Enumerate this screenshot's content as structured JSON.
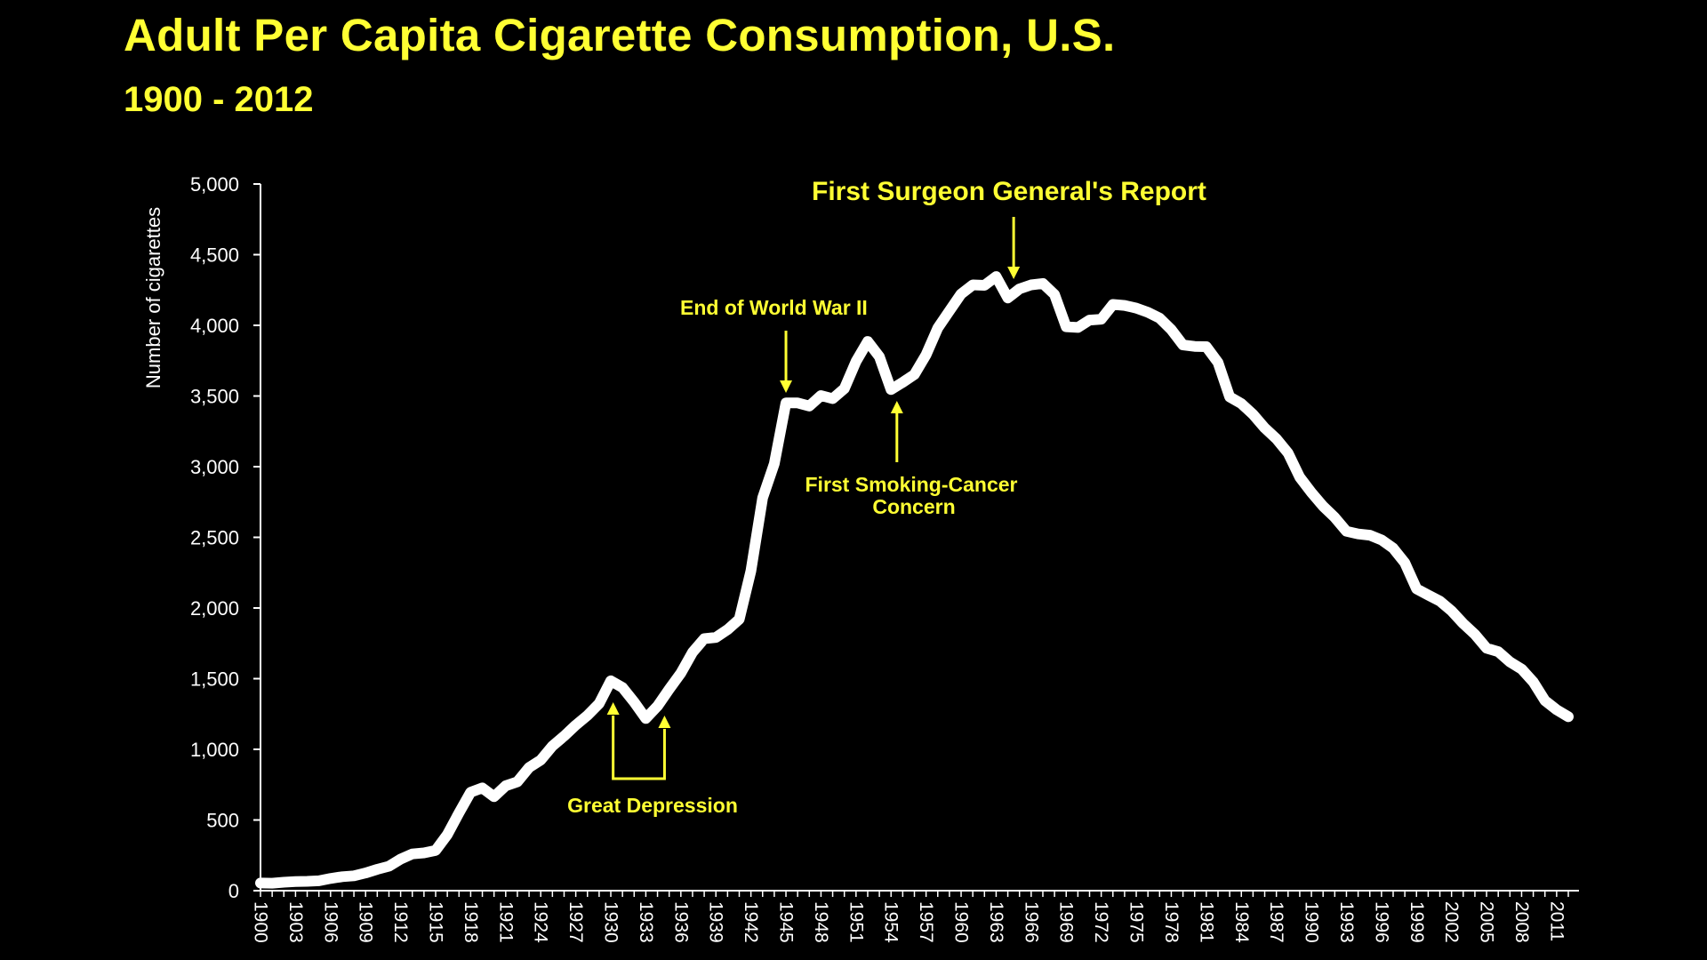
{
  "title": "Adult Per Capita Cigarette Consumption, U.S.",
  "subtitle": "1900 - 2012",
  "colors": {
    "background": "#000000",
    "accent": "#ffff33",
    "line": "#ffffff"
  },
  "chart_data": {
    "type": "line",
    "title": "Adult Per Capita Cigarette Consumption, U.S.",
    "subtitle": "1900 - 2012",
    "xlabel": "",
    "ylabel": "Number of cigarettes",
    "ylim": [
      0,
      5000
    ],
    "xlim": [
      1900,
      2012
    ],
    "grid": false,
    "y_ticks": [
      0,
      500,
      1000,
      1500,
      2000,
      2500,
      3000,
      3500,
      4000,
      4500,
      5000
    ],
    "y_tick_labels": [
      "0",
      "500",
      "1,000",
      "1,500",
      "2,000",
      "2,500",
      "3,000",
      "3,500",
      "4,000",
      "4,500",
      "5,000"
    ],
    "x_tick_labels": [
      "1900",
      "1903",
      "1906",
      "1909",
      "1912",
      "1915",
      "1918",
      "1921",
      "1924",
      "1927",
      "1930",
      "1933",
      "1936",
      "1939",
      "1942",
      "1945",
      "1948",
      "1951",
      "1954",
      "1957",
      "1960",
      "1963",
      "1966",
      "1969",
      "1972",
      "1975",
      "1978",
      "1981",
      "1984",
      "1987",
      "1990",
      "1993",
      "1996",
      "1999",
      "2002",
      "2005",
      "2008",
      "2011"
    ],
    "x": [
      1900,
      1901,
      1902,
      1903,
      1904,
      1905,
      1906,
      1907,
      1908,
      1909,
      1910,
      1911,
      1912,
      1913,
      1914,
      1915,
      1916,
      1917,
      1918,
      1919,
      1920,
      1921,
      1922,
      1923,
      1924,
      1925,
      1926,
      1927,
      1928,
      1929,
      1930,
      1931,
      1932,
      1933,
      1934,
      1935,
      1936,
      1937,
      1938,
      1939,
      1940,
      1941,
      1942,
      1943,
      1944,
      1945,
      1946,
      1947,
      1948,
      1949,
      1950,
      1951,
      1952,
      1953,
      1954,
      1955,
      1956,
      1957,
      1958,
      1959,
      1960,
      1961,
      1962,
      1963,
      1964,
      1965,
      1966,
      1967,
      1968,
      1969,
      1970,
      1971,
      1972,
      1973,
      1974,
      1975,
      1976,
      1977,
      1978,
      1979,
      1980,
      1981,
      1982,
      1983,
      1984,
      1985,
      1986,
      1987,
      1988,
      1989,
      1990,
      1991,
      1992,
      1993,
      1994,
      1995,
      1996,
      1997,
      1998,
      1999,
      2000,
      2001,
      2002,
      2003,
      2004,
      2005,
      2006,
      2007,
      2008,
      2009,
      2010,
      2011,
      2012
    ],
    "values": [
      54,
      53,
      60,
      64,
      66,
      70,
      86,
      99,
      105,
      125,
      151,
      173,
      223,
      260,
      267,
      285,
      396,
      551,
      697,
      727,
      665,
      742,
      770,
      872,
      924,
      1023,
      1094,
      1171,
      1240,
      1324,
      1485,
      1437,
      1334,
      1218,
      1306,
      1426,
      1539,
      1687,
      1783,
      1792,
      1847,
      1921,
      2262,
      2779,
      3021,
      3451,
      3451,
      3429,
      3503,
      3481,
      3552,
      3744,
      3886,
      3778,
      3546,
      3597,
      3652,
      3791,
      3981,
      4102,
      4222,
      4286,
      4283,
      4345,
      4194,
      4258,
      4286,
      4296,
      4218,
      3990,
      3985,
      4037,
      4043,
      4148,
      4141,
      4122,
      4092,
      4051,
      3970,
      3861,
      3851,
      3849,
      3737,
      3494,
      3446,
      3370,
      3274,
      3197,
      3096,
      2926,
      2817,
      2720,
      2641,
      2543,
      2524,
      2515,
      2482,
      2423,
      2320,
      2136,
      2092,
      2049,
      1979,
      1890,
      1814,
      1716,
      1691,
      1619,
      1568,
      1477,
      1345,
      1280,
      1231
    ],
    "annotations": [
      {
        "text": "First Surgeon General's Report",
        "year": 1964,
        "arrow": "down"
      },
      {
        "text": "End of World War II",
        "year": 1945,
        "arrow": "down"
      },
      {
        "text": "First Smoking-Cancer",
        "text2": "Concern",
        "year": 1954,
        "arrow": "up"
      },
      {
        "text": "Great Depression",
        "years": [
          1930,
          1934
        ],
        "arrow": "up-bracket"
      }
    ]
  }
}
